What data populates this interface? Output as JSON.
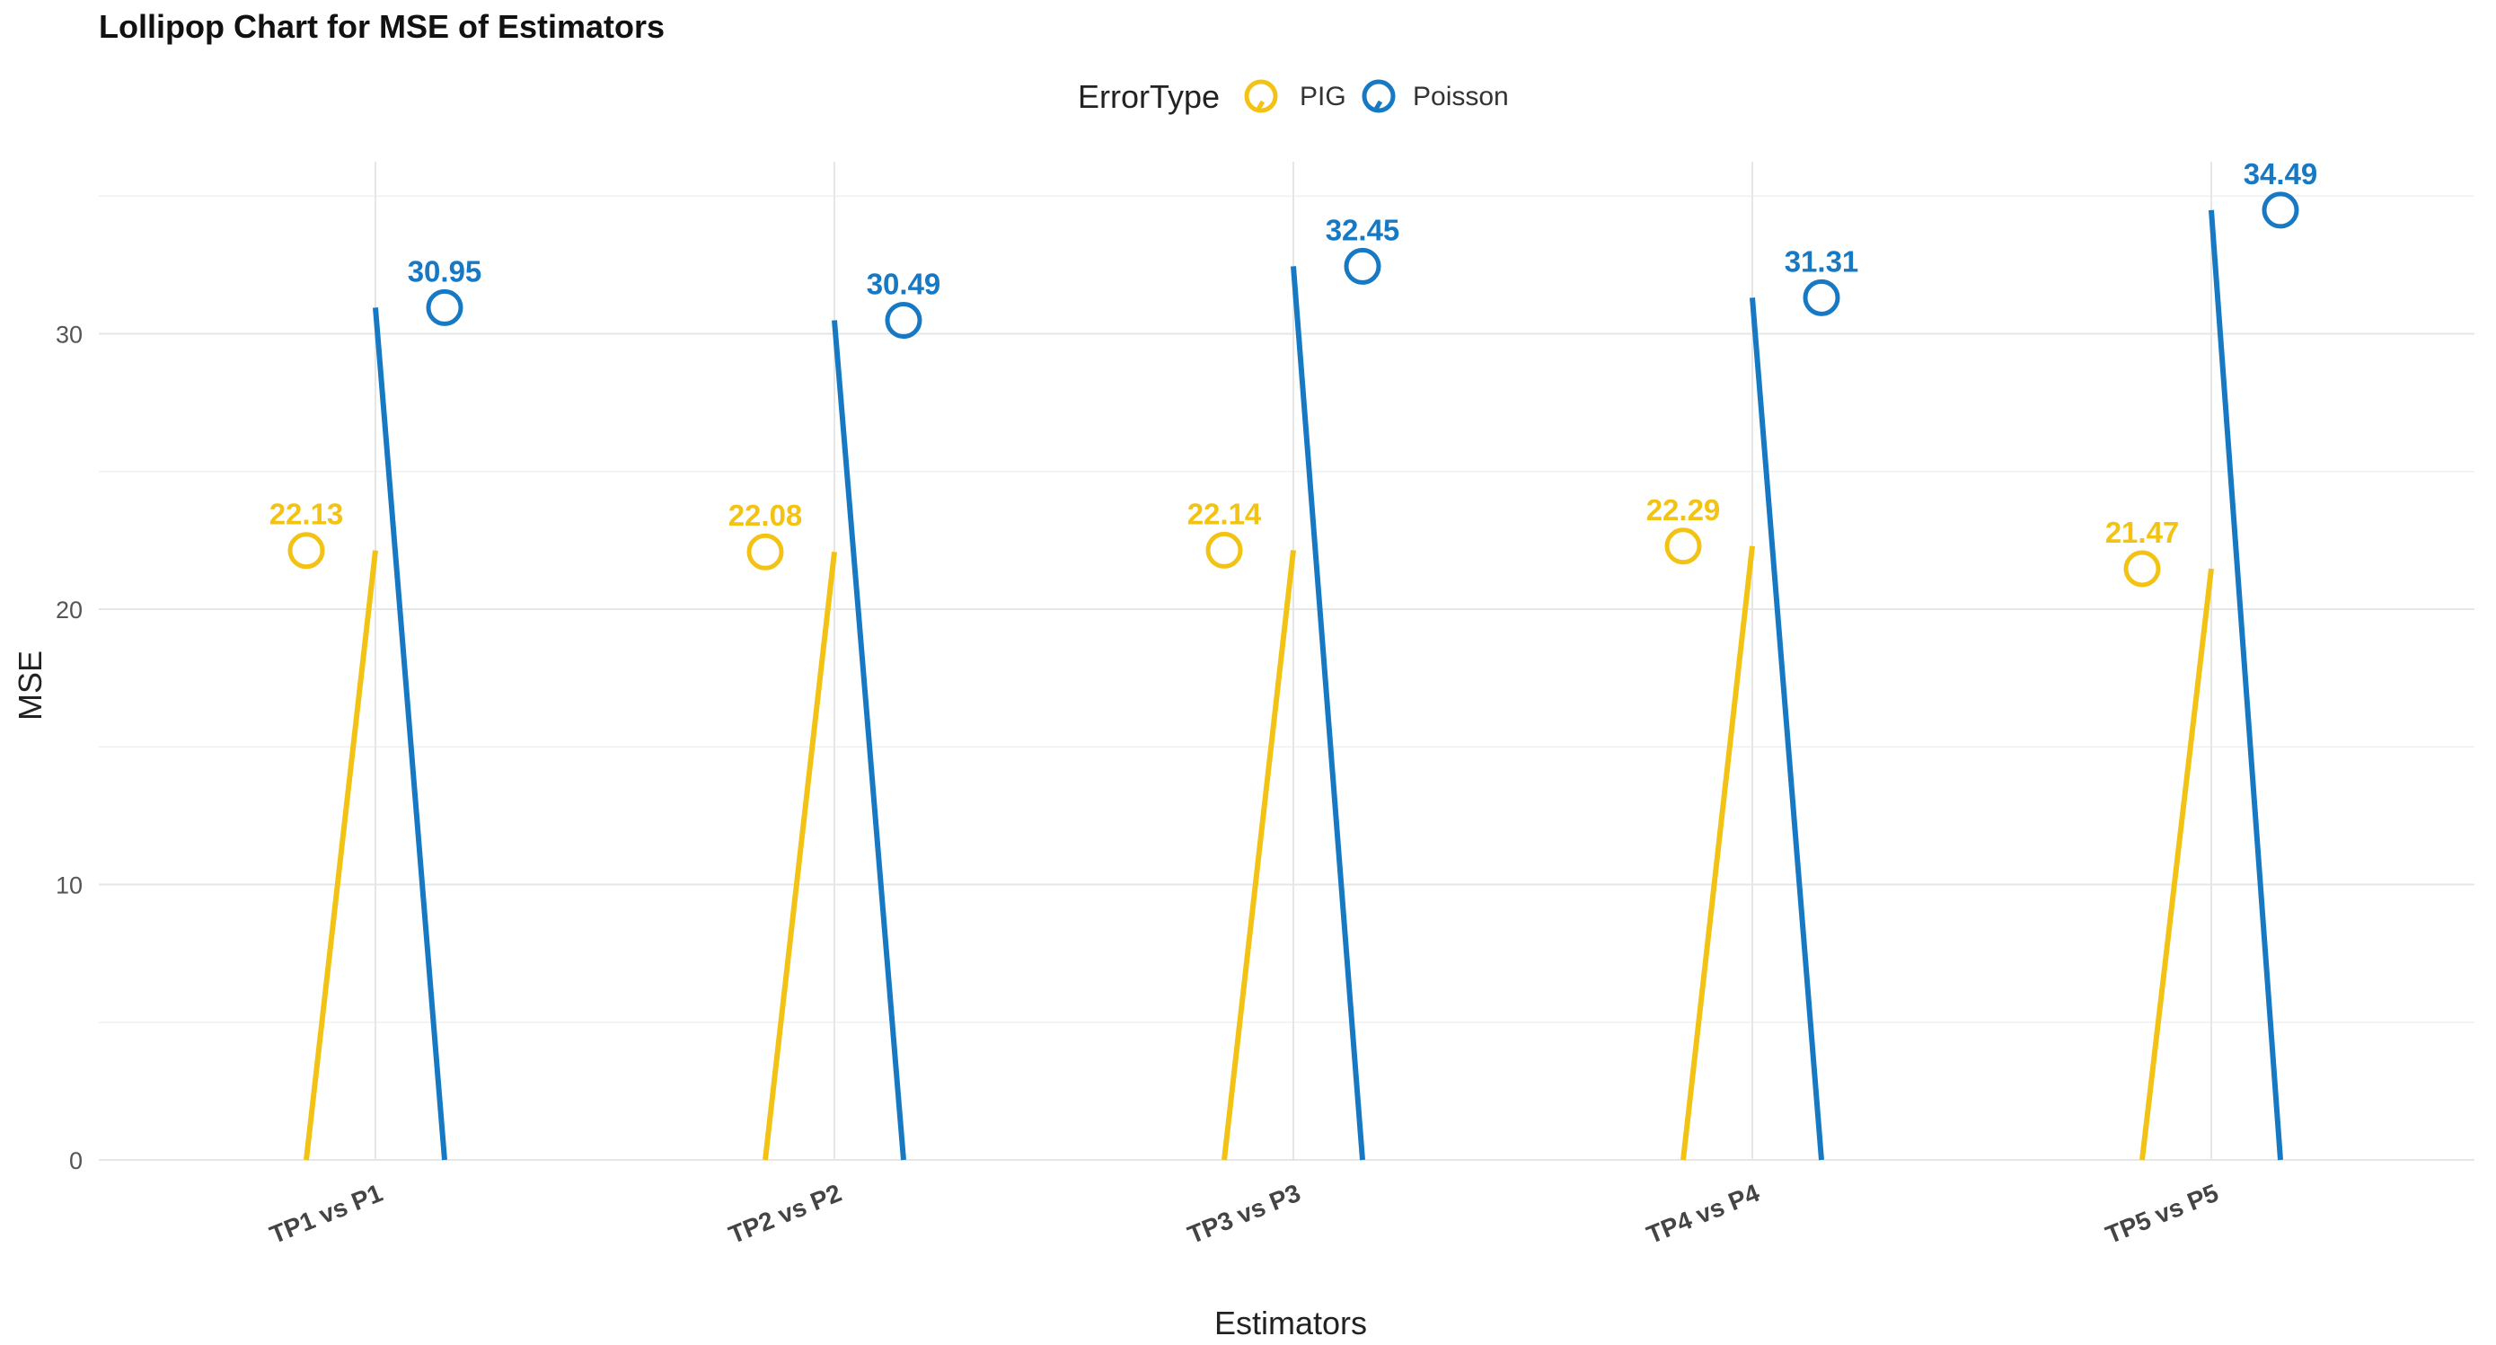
{
  "colors": {
    "PIG": "#F2C314",
    "Poisson": "#1779C4",
    "background": "#ffffff",
    "grid": "#e6e6e6"
  },
  "chart_data": {
    "type": "lollipop",
    "title": "Lollipop Chart for MSE of Estimators",
    "xlabel": "Estimators",
    "ylabel": "MSE",
    "categories": [
      "TP1 vs P1",
      "TP2 vs P2",
      "TP3 vs P3",
      "TP4 vs P4",
      "TP5 vs P5"
    ],
    "series": [
      {
        "name": "PIG",
        "values": [
          22.13,
          22.08,
          22.14,
          22.29,
          21.47
        ],
        "labels": [
          "22.13",
          "22.08",
          "22.14",
          "22.29",
          "21.47"
        ]
      },
      {
        "name": "Poisson",
        "values": [
          30.95,
          30.49,
          32.45,
          31.31,
          34.49
        ],
        "labels": [
          "30.95",
          "30.49",
          "32.45",
          "31.31",
          "34.49"
        ]
      }
    ],
    "ylim": [
      0,
      35
    ],
    "yticks": [
      0,
      10,
      20,
      30
    ],
    "ytick_labels": [
      "0",
      "10",
      "20",
      "30"
    ],
    "legend": {
      "title": "ErrorType",
      "position": "top",
      "entries": [
        "PIG",
        "Poisson"
      ]
    },
    "grid": true
  }
}
